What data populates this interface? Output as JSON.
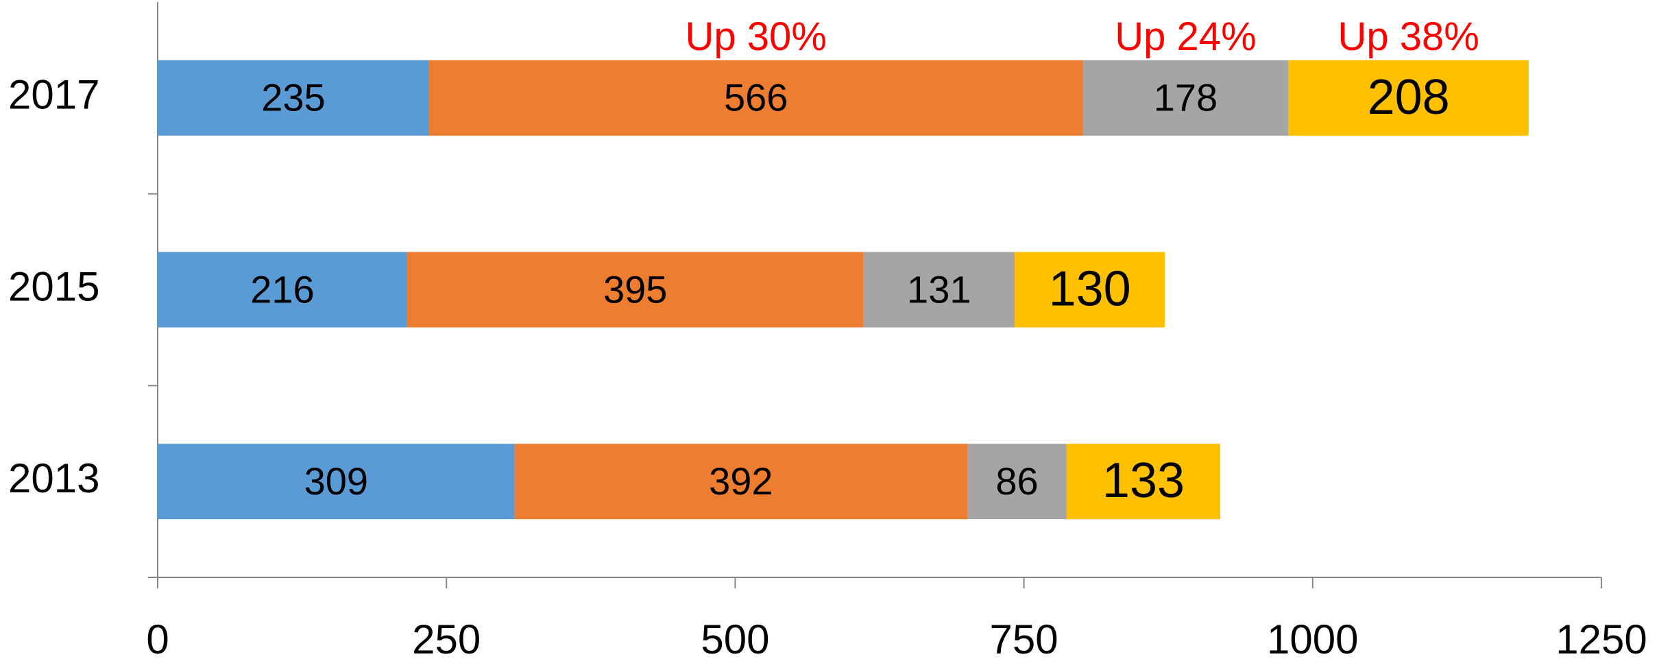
{
  "chart_data": {
    "type": "stacked-barh",
    "categories": [
      "2017",
      "2015",
      "2013"
    ],
    "series": [
      {
        "color": "#5b9bd5",
        "values": [
          235,
          216,
          309
        ]
      },
      {
        "color": "#ed7d31",
        "values": [
          566,
          395,
          392
        ],
        "annotation": "Up 30%"
      },
      {
        "color": "#a5a5a5",
        "values": [
          178,
          131,
          86
        ],
        "annotation": "Up 24%"
      },
      {
        "color": "#ffc000",
        "values": [
          208,
          130,
          133
        ],
        "annotation": "Up 38%"
      }
    ],
    "xlim": [
      0,
      1250
    ],
    "xticks": [
      0,
      250,
      500,
      750,
      1000,
      1250
    ],
    "grid": false
  }
}
